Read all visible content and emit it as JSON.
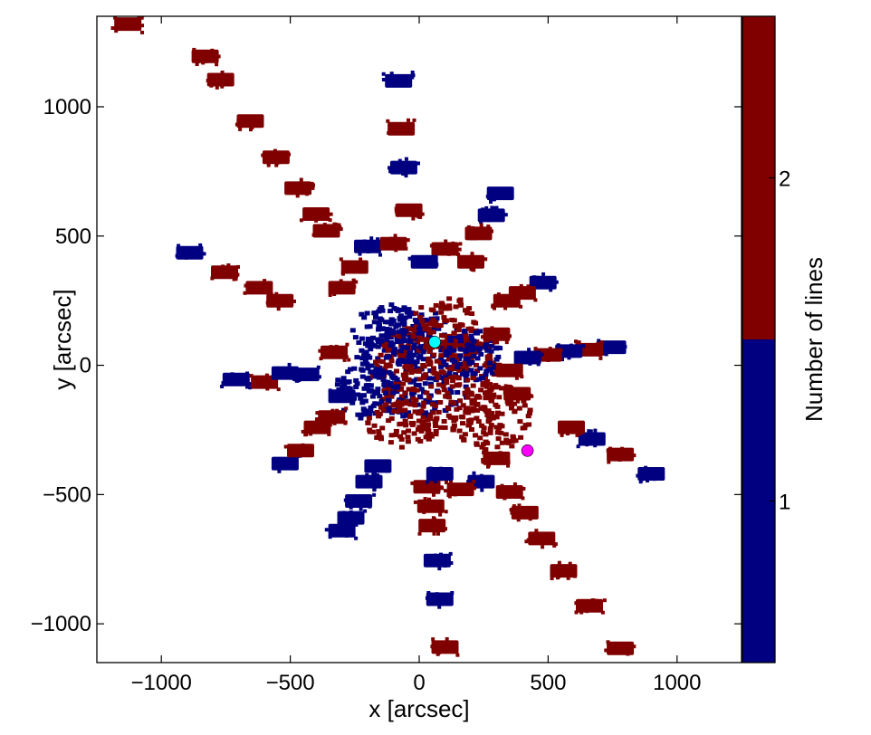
{
  "chart_data": {
    "type": "scatter",
    "title": "",
    "xlabel": "x [arcsec]",
    "ylabel": "y [arcsec]",
    "xlim": [
      -1250,
      1250
    ],
    "ylim": [
      -1150,
      1350
    ],
    "xticks": [
      {
        "value": -1000,
        "label": "−1000"
      },
      {
        "value": -500,
        "label": "−500"
      },
      {
        "value": 0,
        "label": "0"
      },
      {
        "value": 500,
        "label": "500"
      },
      {
        "value": 1000,
        "label": "1000"
      }
    ],
    "yticks": [
      {
        "value": -1000,
        "label": "−1000"
      },
      {
        "value": -500,
        "label": "−500"
      },
      {
        "value": 0,
        "label": "0"
      },
      {
        "value": 500,
        "label": "500"
      },
      {
        "value": 1000,
        "label": "1000"
      }
    ],
    "grid": false,
    "colors": {
      "one_line": "#000080",
      "two_lines": "#800000",
      "cyan_marker": "#00ffff",
      "magenta_marker": "#ff00ff"
    },
    "colorbar": {
      "label": "Number of lines",
      "range": [
        0.5,
        2.5
      ],
      "segments": [
        {
          "from": 0.5,
          "to": 1.5,
          "color": "#000080"
        },
        {
          "from": 1.5,
          "to": 2.5,
          "color": "#800000"
        }
      ],
      "ticks": [
        {
          "value": 1,
          "label": "1"
        },
        {
          "value": 2,
          "label": "2"
        }
      ]
    },
    "markers": [
      {
        "x": 60,
        "y": 90,
        "color": "#00ffff"
      },
      {
        "x": 420,
        "y": -330,
        "color": "#ff00ff"
      }
    ],
    "core_patches": [
      {
        "x": 0,
        "y": 0,
        "rx": 230,
        "ry": 210,
        "color": "#000080"
      },
      {
        "x": 70,
        "y": -40,
        "rx": 250,
        "ry": 220,
        "color": "#800000"
      },
      {
        "x": -120,
        "y": 100,
        "rx": 150,
        "ry": 140,
        "color": "#000080"
      },
      {
        "x": 280,
        "y": -200,
        "rx": 160,
        "ry": 130,
        "color": "#800000"
      },
      {
        "x": -200,
        "y": -100,
        "rx": 130,
        "ry": 110,
        "color": "#000080"
      },
      {
        "x": 100,
        "y": 150,
        "rx": 130,
        "ry": 120,
        "color": "#800000"
      },
      {
        "x": -60,
        "y": -230,
        "rx": 140,
        "ry": 90,
        "color": "#800000"
      },
      {
        "x": 200,
        "y": 40,
        "rx": 120,
        "ry": 100,
        "color": "#000080"
      }
    ],
    "blocks": [
      {
        "x": -1130,
        "y": 1320,
        "color": "#800000"
      },
      {
        "x": -830,
        "y": 1195,
        "color": "#800000"
      },
      {
        "x": -770,
        "y": 1105,
        "color": "#800000"
      },
      {
        "x": -655,
        "y": 945,
        "color": "#800000"
      },
      {
        "x": -555,
        "y": 805,
        "color": "#800000"
      },
      {
        "x": -470,
        "y": 685,
        "color": "#800000"
      },
      {
        "x": -400,
        "y": 585,
        "color": "#800000"
      },
      {
        "x": -360,
        "y": 520,
        "color": "#800000"
      },
      {
        "x": -890,
        "y": 435,
        "color": "#000080"
      },
      {
        "x": -755,
        "y": 360,
        "color": "#800000"
      },
      {
        "x": -620,
        "y": 300,
        "color": "#800000"
      },
      {
        "x": -540,
        "y": 250,
        "color": "#800000"
      },
      {
        "x": -710,
        "y": -55,
        "color": "#000080"
      },
      {
        "x": -600,
        "y": -65,
        "color": "#800000"
      },
      {
        "x": -520,
        "y": -30,
        "color": "#000080"
      },
      {
        "x": -440,
        "y": -35,
        "color": "#000080"
      },
      {
        "x": -520,
        "y": -380,
        "color": "#000080"
      },
      {
        "x": -460,
        "y": -330,
        "color": "#800000"
      },
      {
        "x": -395,
        "y": -240,
        "color": "#800000"
      },
      {
        "x": -340,
        "y": -200,
        "color": "#800000"
      },
      {
        "x": -300,
        "y": -640,
        "color": "#000080"
      },
      {
        "x": -265,
        "y": -590,
        "color": "#000080"
      },
      {
        "x": -235,
        "y": -525,
        "color": "#000080"
      },
      {
        "x": -195,
        "y": -450,
        "color": "#000080"
      },
      {
        "x": -160,
        "y": -390,
        "color": "#000080"
      },
      {
        "x": -80,
        "y": 1100,
        "color": "#000080"
      },
      {
        "x": -70,
        "y": 915,
        "color": "#800000"
      },
      {
        "x": -60,
        "y": 765,
        "color": "#000080"
      },
      {
        "x": -40,
        "y": 600,
        "color": "#800000"
      },
      {
        "x": 315,
        "y": 665,
        "color": "#000080"
      },
      {
        "x": 280,
        "y": 580,
        "color": "#000080"
      },
      {
        "x": 230,
        "y": 510,
        "color": "#800000"
      },
      {
        "x": 200,
        "y": 400,
        "color": "#800000"
      },
      {
        "x": 480,
        "y": 320,
        "color": "#000080"
      },
      {
        "x": 400,
        "y": 280,
        "color": "#800000"
      },
      {
        "x": 340,
        "y": 250,
        "color": "#800000"
      },
      {
        "x": 750,
        "y": 70,
        "color": "#000080"
      },
      {
        "x": 660,
        "y": 60,
        "color": "#800000"
      },
      {
        "x": 580,
        "y": 55,
        "color": "#000080"
      },
      {
        "x": 500,
        "y": 40,
        "color": "#800000"
      },
      {
        "x": 420,
        "y": 30,
        "color": "#000080"
      },
      {
        "x": 900,
        "y": -420,
        "color": "#000080"
      },
      {
        "x": 780,
        "y": -345,
        "color": "#800000"
      },
      {
        "x": 670,
        "y": -285,
        "color": "#000080"
      },
      {
        "x": 590,
        "y": -240,
        "color": "#800000"
      },
      {
        "x": 780,
        "y": -1095,
        "color": "#800000"
      },
      {
        "x": 660,
        "y": -930,
        "color": "#800000"
      },
      {
        "x": 560,
        "y": -795,
        "color": "#800000"
      },
      {
        "x": 475,
        "y": -670,
        "color": "#800000"
      },
      {
        "x": 410,
        "y": -570,
        "color": "#800000"
      },
      {
        "x": 350,
        "y": -490,
        "color": "#800000"
      },
      {
        "x": 100,
        "y": -1090,
        "color": "#800000"
      },
      {
        "x": 80,
        "y": -905,
        "color": "#000080"
      },
      {
        "x": 70,
        "y": -755,
        "color": "#000080"
      },
      {
        "x": 50,
        "y": -620,
        "color": "#800000"
      },
      {
        "x": 45,
        "y": -545,
        "color": "#800000"
      },
      {
        "x": 30,
        "y": -470,
        "color": "#800000"
      },
      {
        "x": 240,
        "y": -450,
        "color": "#000080"
      },
      {
        "x": 300,
        "y": -360,
        "color": "#800000"
      },
      {
        "x": 380,
        "y": -110,
        "color": "#800000"
      },
      {
        "x": -300,
        "y": 300,
        "color": "#800000"
      },
      {
        "x": -250,
        "y": 380,
        "color": "#800000"
      },
      {
        "x": -200,
        "y": 460,
        "color": "#000080"
      },
      {
        "x": 100,
        "y": 450,
        "color": "#800000"
      },
      {
        "x": -100,
        "y": 470,
        "color": "#800000"
      },
      {
        "x": 20,
        "y": 400,
        "color": "#000080"
      },
      {
        "x": 300,
        "y": 120,
        "color": "#800000"
      },
      {
        "x": 350,
        "y": -20,
        "color": "#800000"
      },
      {
        "x": 160,
        "y": -480,
        "color": "#800000"
      },
      {
        "x": 80,
        "y": -420,
        "color": "#000080"
      },
      {
        "x": -330,
        "y": 50,
        "color": "#800000"
      },
      {
        "x": -300,
        "y": -120,
        "color": "#000080"
      }
    ]
  }
}
